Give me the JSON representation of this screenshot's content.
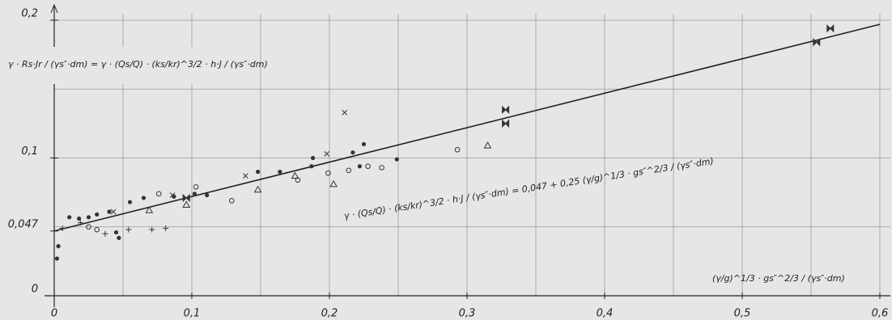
{
  "chart_data": {
    "type": "scatter",
    "y_label": "γ · Rs·Jr / (γs″·dm)  =  γ · (Qs/Q) · (ks/kr)^3/2 · h·J / (γs″·dm)",
    "x_label": "(γ/g)^1/3 · gs″^2/3 / (γs″·dm)",
    "annotation": "γ · (Qs/Q) · (ks/kr)^3/2 · h·J / (γs″·dm)  =  0,047 + 0,25 (γ/g)^1/3 · gs″^2/3 / (γs″·dm)",
    "xlim": [
      0,
      0.6
    ],
    "ylim": [
      0,
      0.2
    ],
    "xticks": [
      0,
      {
        "value": 0.1,
        "label": "0,1"
      },
      {
        "value": 0.2,
        "label": "0,2"
      },
      {
        "value": 0.3,
        "label": "0,3"
      },
      {
        "value": 0.4,
        "label": "0,4"
      },
      {
        "value": 0.5,
        "label": "0,5"
      },
      {
        "value": 0.6,
        "label": "0,6"
      }
    ],
    "yticks": [
      0,
      {
        "value": 0.047,
        "label": "0,047"
      },
      {
        "value": 0.1,
        "label": "0,1"
      },
      {
        "value": 0.2,
        "label": "0,2"
      }
    ],
    "xgrid": [
      0.05,
      0.1,
      0.15,
      0.2,
      0.25,
      0.3,
      0.35,
      0.4,
      0.45,
      0.5,
      0.55,
      0.6
    ],
    "ygrid": [
      0.05,
      0.1,
      0.15,
      0.2
    ],
    "color": "#333333",
    "fit_line": {
      "x": [
        0,
        0.6
      ],
      "values": [
        0.047,
        0.197
      ]
    },
    "series": [
      {
        "marker": "dot",
        "x": [
          0.011,
          0.018,
          0.025,
          0.031,
          0.04,
          0.055,
          0.065,
          0.087,
          0.102,
          0.111,
          0.148,
          0.164,
          0.188,
          0.187,
          0.217,
          0.222,
          0.225,
          0.249,
          0.045,
          0.047,
          0.002,
          0.003
        ],
        "values": [
          0.057,
          0.056,
          0.057,
          0.059,
          0.061,
          0.068,
          0.071,
          0.072,
          0.074,
          0.073,
          0.09,
          0.09,
          0.1,
          0.094,
          0.104,
          0.094,
          0.11,
          0.099,
          0.046,
          0.042,
          0.027,
          0.036
        ]
      },
      {
        "marker": "bowtie",
        "x": [
          0.328,
          0.328,
          0.554,
          0.564,
          0.096
        ],
        "values": [
          0.135,
          0.125,
          0.184,
          0.194,
          0.071
        ]
      },
      {
        "marker": "circle",
        "x": [
          0.031,
          0.076,
          0.103,
          0.129,
          0.199,
          0.214,
          0.228,
          0.238,
          0.293,
          0.177,
          0.025
        ],
        "values": [
          0.048,
          0.074,
          0.079,
          0.069,
          0.089,
          0.091,
          0.094,
          0.093,
          0.106,
          0.084,
          0.05
        ]
      },
      {
        "marker": "triangle",
        "x": [
          0.148,
          0.175,
          0.315,
          0.096,
          0.203,
          0.069
        ],
        "values": [
          0.077,
          0.087,
          0.109,
          0.066,
          0.081,
          0.062
        ]
      },
      {
        "marker": "cross",
        "x": [
          0.211,
          0.198,
          0.139,
          0.086,
          0.043
        ],
        "values": [
          0.133,
          0.103,
          0.087,
          0.073,
          0.061
        ]
      },
      {
        "marker": "plus",
        "x": [
          0.054,
          0.081,
          0.071,
          0.037,
          0.019,
          0.006
        ],
        "values": [
          0.048,
          0.049,
          0.048,
          0.045,
          0.053,
          0.049
        ]
      }
    ]
  }
}
